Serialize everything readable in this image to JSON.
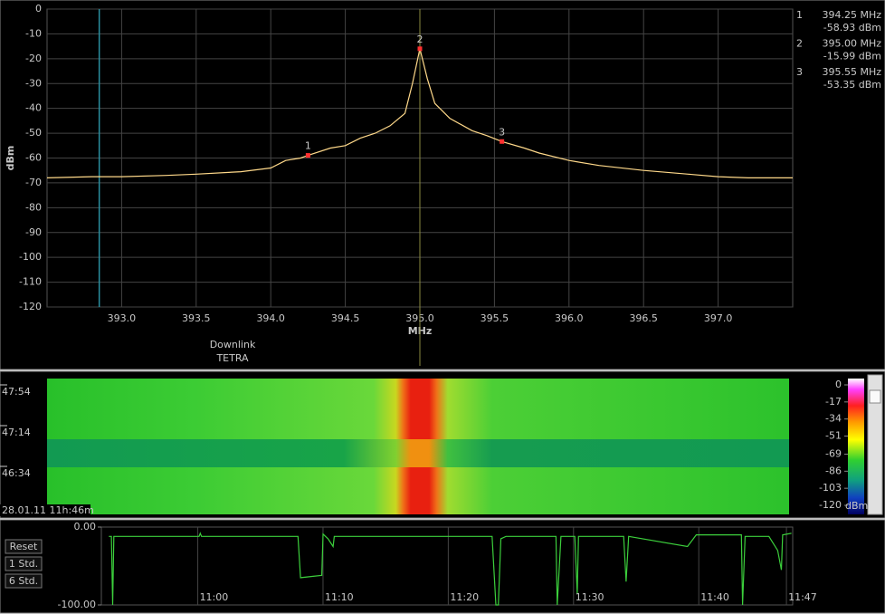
{
  "chart_data": [
    {
      "type": "line",
      "xlabel": "MHz",
      "ylabel": "dBm",
      "xlim": [
        392.5,
        397.5
      ],
      "xticks": [
        {
          "value": 393,
          "label": "393.0"
        },
        393.5,
        394.5,
        {
          "value": 394,
          "label": "394.0"
        },
        {
          "value": 395,
          "label": "395.0"
        },
        395.5,
        {
          "value": 396,
          "label": "396.0"
        },
        396.5,
        {
          "value": 397,
          "label": "397.0"
        }
      ],
      "ylim": [
        -120,
        0
      ],
      "yticks": [
        0,
        -10,
        -20,
        -30,
        -40,
        -50,
        -60,
        -70,
        -80,
        -90,
        -100,
        -110,
        -120
      ],
      "grid": true,
      "series": [
        {
          "color": "#ffd98a",
          "x": [
            392.5,
            392.8,
            393.0,
            393.3,
            393.5,
            393.8,
            394.0,
            394.1,
            394.2,
            394.25,
            394.4,
            394.5,
            394.6,
            394.7,
            394.8,
            394.9,
            394.95,
            395.0,
            395.05,
            395.1,
            395.2,
            395.35,
            395.45,
            395.55,
            395.7,
            395.8,
            396.0,
            396.2,
            396.5,
            396.8,
            397.0,
            397.2,
            397.5
          ],
          "values": [
            -68,
            -67.5,
            -67.5,
            -67,
            -66.5,
            -65.5,
            -64,
            -61,
            -60,
            -58.93,
            -56,
            -55,
            -52,
            -50,
            -47,
            -42,
            -30,
            -15.99,
            -28,
            -38,
            -44,
            -49,
            -51,
            -53.35,
            -56,
            -58,
            -61,
            -63,
            -65,
            -66.5,
            -67.5,
            -68,
            -68
          ]
        }
      ],
      "markers": [
        {
          "label": "1",
          "x": 394.25,
          "y": -58.93,
          "freq_label": "394.25 MHz",
          "level_label": "-58.93 dBm"
        },
        {
          "label": "2",
          "x": 395.0,
          "y": -15.99,
          "freq_label": "395.00 MHz",
          "level_label": "-15.99 dBm"
        },
        {
          "label": "3",
          "x": 395.55,
          "y": -53.35,
          "freq_label": "395.55 MHz",
          "level_label": "-53.35 dBm"
        }
      ],
      "channel": {
        "x": 395.0,
        "label_lines": [
          "Downlink",
          "TETRA"
        ]
      },
      "cursor_x": 392.85
    },
    {
      "type": "heatmap",
      "time_labels": [
        "47:54",
        "47:14",
        "46:34"
      ],
      "timestamp": "28.01.11 11h:46m",
      "clim": [
        -120,
        0
      ],
      "cticks": [
        0,
        -17,
        -34,
        -51,
        -69,
        -86,
        -103,
        -120
      ],
      "colorbar_label": "dBm"
    },
    {
      "type": "line",
      "xlim": [
        652.3,
        707.5
      ],
      "xticks": [
        {
          "value": 660,
          "label": "11:00"
        },
        {
          "value": 670,
          "label": "11:10"
        },
        {
          "value": 680,
          "label": "11:20"
        },
        {
          "value": 690,
          "label": "11:30"
        },
        {
          "value": 700,
          "label": "11:40"
        },
        {
          "value": 707,
          "label": "11:47"
        }
      ],
      "ylim": [
        -100,
        0
      ],
      "yticks": [
        {
          "value": 0,
          "label": "0.00"
        },
        {
          "value": -100,
          "label": "-100.00"
        }
      ],
      "series": [
        {
          "color": "#3ccf3c",
          "x": [
            652.9,
            653.1,
            653.2,
            653.3,
            660.1,
            660.2,
            660.3,
            668.0,
            668.2,
            669.9,
            670.0,
            670.2,
            670.4,
            670.8,
            670.9,
            683.5,
            683.8,
            684.0,
            684.2,
            684.6,
            688.6,
            688.7,
            689.0,
            690.1,
            690.3,
            690.4,
            694.0,
            694.2,
            694.4,
            699.1,
            699.8,
            703.4,
            703.5,
            703.7,
            705.6,
            706.3,
            706.6,
            706.7,
            707.4
          ],
          "values": [
            -12,
            -12,
            -100,
            -12,
            -12,
            -8,
            -12,
            -12,
            -65,
            -62,
            -9,
            -12,
            -15,
            -25,
            -12,
            -12,
            -100,
            -100,
            -15,
            -12,
            -12,
            -100,
            -12,
            -12,
            -85,
            -12,
            -12,
            -70,
            -12,
            -25,
            -10,
            -10,
            -100,
            -12,
            -12,
            -30,
            -55,
            -10,
            -8
          ]
        }
      ]
    }
  ],
  "controls": [
    "Reset",
    "1 Std.",
    "6 Std."
  ]
}
